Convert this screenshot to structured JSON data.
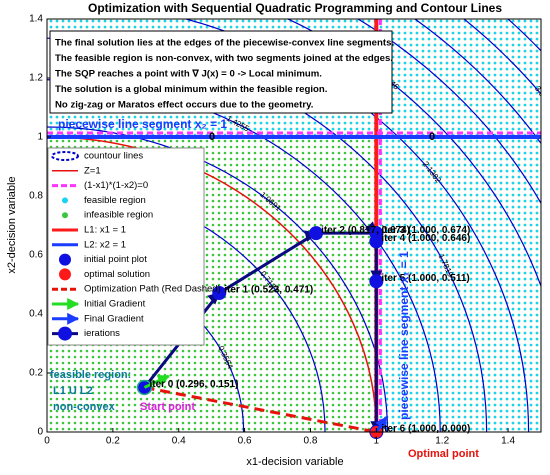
{
  "chart_data": {
    "type": "contour",
    "title": "Optimization with Sequential Quadratic Programming and Contour Lines",
    "x_label": "x1-decision variable",
    "y_label": "x2-decision variable",
    "xlim": [
      0,
      1.5
    ],
    "ylim": [
      0,
      1.4
    ],
    "xticks": [
      0,
      0.2,
      0.4,
      0.6,
      0.8,
      1,
      1.2,
      1.4
    ],
    "yticks": [
      0,
      0.2,
      0.4,
      0.6,
      0.8,
      1,
      1.2,
      1.4
    ],
    "contour": {
      "name": "countour lines",
      "color": "#0000cd",
      "levels": [
        0.3564,
        0.7127,
        1.0691,
        1.4255,
        1.7819,
        2.1382,
        2.4946,
        {
          "value": 2.851,
          "label": "2.8510"
        },
        3.2074,
        3.5637,
        3.9201
      ]
    },
    "z1": {
      "name": "Z=1",
      "radius": 1,
      "color": "#e8120c"
    },
    "constraint": {
      "name": "(1-x1)*(1-x2)=0",
      "level_label": "0",
      "color": "#ff33ff"
    },
    "feasible": {
      "name": "feasible region",
      "color": "#19d3f0"
    },
    "infeasible": {
      "name": "infeasible region",
      "color": "#3dc43d"
    },
    "L1": {
      "name": "L1: x1 = 1",
      "x": 1,
      "color": "#ff1a1a"
    },
    "L2": {
      "name": "L2: x2 = 1",
      "y": 1,
      "color": "#1a3cff"
    },
    "initial_point": {
      "name": "initial point plot",
      "x": 0.296,
      "y": 0.151,
      "color": "#1010e0"
    },
    "optimal": {
      "name": "optimal solution",
      "x": 1,
      "y": 0,
      "color": "#ff1a1a"
    },
    "path": {
      "name": "Optimization Path (Red Dashed)",
      "color": "#e8120c"
    },
    "initial_gradient": {
      "name": "Initial Gradient",
      "x": [
        0.296,
        0.37
      ],
      "y": [
        0.151,
        0.19
      ],
      "color": "#22dd22"
    },
    "final_gradient": {
      "name": "Final Gradient",
      "x": [
        1,
        1.03
      ],
      "y": [
        0,
        0.05
      ],
      "color": "#1a3cff"
    },
    "iterations": {
      "name": "ierations",
      "color": "#0a0a80",
      "dot_color": "#1010e0",
      "x": [
        0.296,
        0.523,
        0.817,
        1,
        1,
        1,
        1
      ],
      "y": [
        0.151,
        0.471,
        0.674,
        0.674,
        0.646,
        0.511,
        0
      ],
      "labels": [
        "iter 0 (0.296, 0.151)",
        "iter 1 (0.523, 0.471)",
        "iter 2 (0.817, 0.674)",
        "iter 3 (1.000, 0.674)",
        "iter 4 (1.000, 0.646)",
        "iter 5 (1.000, 0.511)",
        "iter 6 (1.000, 0.000)"
      ]
    },
    "annotations": {
      "text_box": [
        "The final solution lies at the edges of the piecewise-convex line segments.",
        "The feasible region is non-convex, with two segments joined at the edges.",
        "The SQP reaches a point with ∇ J(x) = 0 -> Local minimum.",
        "The solution is a global minimum within the feasible region.",
        "No zig-zag or Maratos effect occurs due to the geometry."
      ],
      "region_note": [
        "feasible region:",
        "L1 U L2",
        "non-convex"
      ],
      "start_label": "Start point",
      "optimal_label": "Optimal point",
      "segment_x2": "piecewise line segment x₂ = 1",
      "segment_x1": "piecewise line segment x₁ = 1"
    }
  }
}
